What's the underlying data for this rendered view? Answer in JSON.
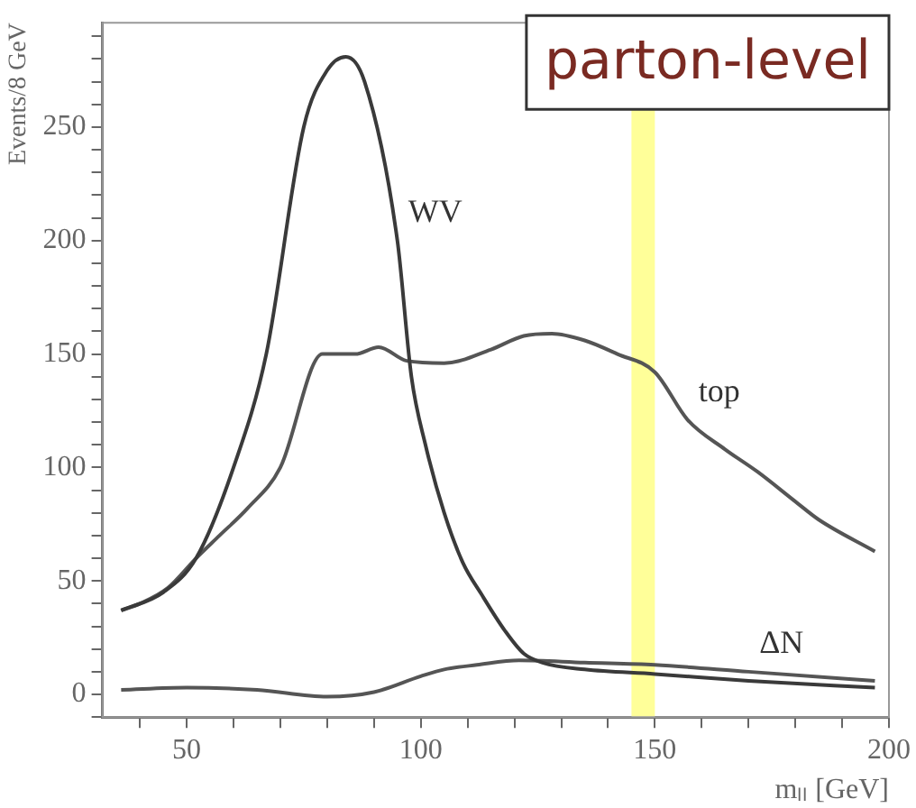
{
  "chart_data": {
    "type": "line",
    "xlabel": "mₗₗ [GeV]",
    "ylabel": "Events/8 GeV",
    "xlim": [
      32,
      200
    ],
    "ylim": [
      -10,
      296
    ],
    "xticks": [
      {
        "value": 40,
        "label": null
      },
      50,
      {
        "value": 60,
        "label": null
      },
      {
        "value": 70,
        "label": null
      },
      {
        "value": 80,
        "label": null
      },
      {
        "value": 90,
        "label": null
      },
      100,
      {
        "value": 110,
        "label": null
      },
      {
        "value": 120,
        "label": null
      },
      {
        "value": 130,
        "label": null
      },
      {
        "value": 140,
        "label": null
      },
      150,
      {
        "value": 160,
        "label": null
      },
      {
        "value": 170,
        "label": null
      },
      {
        "value": 180,
        "label": null
      },
      {
        "value": 190,
        "label": null
      },
      200
    ],
    "yticks": [
      {
        "value": -10,
        "label": null
      },
      0,
      {
        "value": 10,
        "label": null
      },
      {
        "value": 20,
        "label": null
      },
      {
        "value": 30,
        "label": null
      },
      {
        "value": 40,
        "label": null
      },
      50,
      {
        "value": 60,
        "label": null
      },
      {
        "value": 70,
        "label": null
      },
      {
        "value": 80,
        "label": null
      },
      {
        "value": 90,
        "label": null
      },
      100,
      {
        "value": 110,
        "label": null
      },
      {
        "value": 120,
        "label": null
      },
      {
        "value": 130,
        "label": null
      },
      {
        "value": 140,
        "label": null
      },
      150,
      {
        "value": 160,
        "label": null
      },
      {
        "value": 170,
        "label": null
      },
      {
        "value": 180,
        "label": null
      },
      {
        "value": 190,
        "label": null
      },
      200,
      {
        "value": 210,
        "label": null
      },
      {
        "value": 220,
        "label": null
      },
      {
        "value": 230,
        "label": null
      },
      {
        "value": 240,
        "label": null
      },
      250,
      {
        "value": 260,
        "label": null
      },
      {
        "value": 270,
        "label": null
      },
      {
        "value": 280,
        "label": null
      },
      {
        "value": 290,
        "label": null
      }
    ],
    "grid": false,
    "legend": false,
    "marker": "none",
    "line_style": "solid",
    "series": [
      {
        "name": "WV",
        "color": "#3a3a3a",
        "x": [
          36,
          45,
          52,
          60,
          67,
          75,
          80,
          84,
          88,
          95,
          98,
          101,
          105,
          109,
          113,
          118,
          122,
          126,
          135,
          150,
          170,
          197
        ],
        "values": [
          37,
          45,
          60,
          100,
          150,
          250,
          275,
          281,
          270,
          200,
          140,
          110,
          80,
          58,
          44,
          28,
          18,
          14,
          11,
          9,
          6,
          3
        ]
      },
      {
        "name": "top",
        "color": "#555555",
        "x": [
          36,
          40,
          46,
          52,
          57,
          63,
          70,
          79,
          86,
          91,
          97,
          105,
          115,
          122,
          128,
          135,
          142,
          150,
          157,
          165,
          172,
          180,
          185,
          197
        ],
        "values": [
          37,
          40,
          47,
          60,
          70,
          82,
          100,
          150,
          150,
          153,
          147,
          146,
          152,
          158,
          159,
          156,
          150,
          142,
          121,
          108,
          98,
          85,
          77,
          63
        ]
      },
      {
        "name": "ΔN",
        "color": "#555555",
        "x": [
          36,
          50,
          65,
          80,
          90,
          100,
          105,
          112,
          121,
          135,
          150,
          170,
          197
        ],
        "values": [
          2,
          3,
          2,
          -1,
          1,
          8,
          11,
          13,
          15,
          14,
          13,
          10,
          6
        ]
      }
    ],
    "bands": [
      {
        "axis": "x",
        "from": 145,
        "to": 150,
        "color": "#ffff99"
      }
    ],
    "annotations": [
      "parton-level"
    ]
  }
}
